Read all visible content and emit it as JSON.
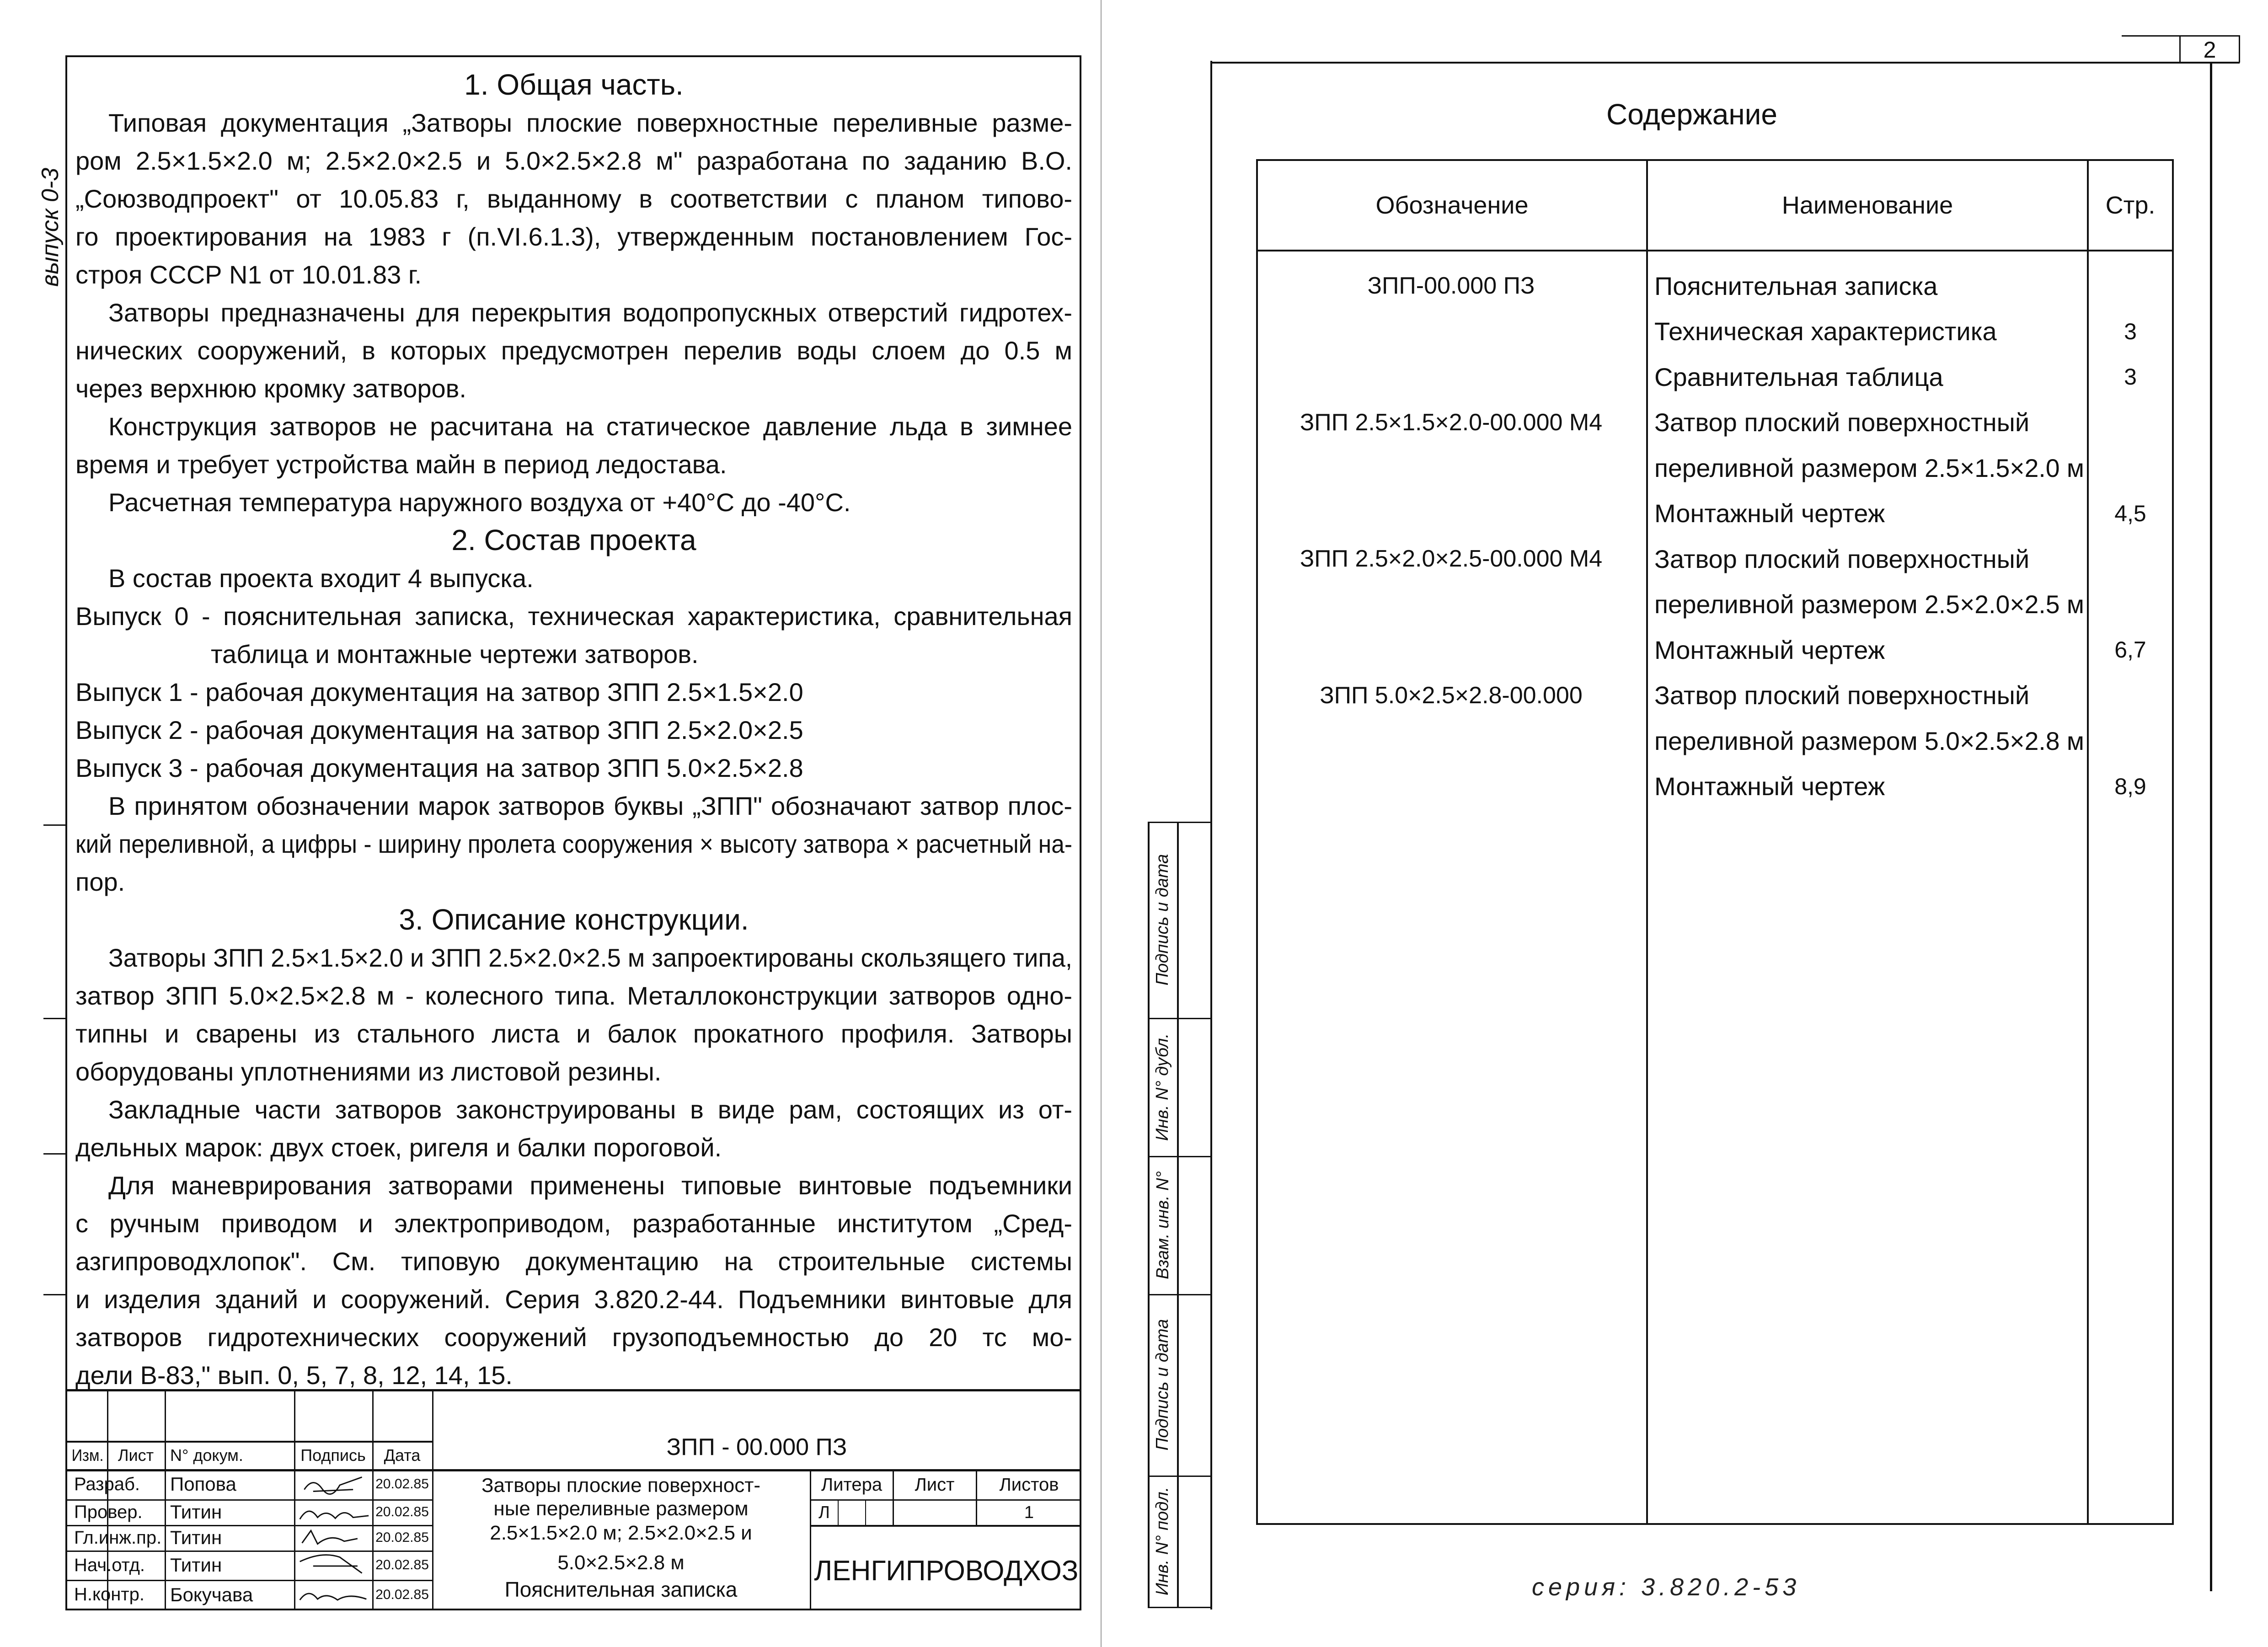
{
  "margin_stamp": "выпуск 0-3",
  "sheet_number": "2",
  "series": "серия: 3.820.2-53",
  "note": {
    "sections": [
      {
        "heading": "1. Общая часть.",
        "paragraphs": [
          {
            "kind": "text",
            "lines": [
              "Типовая документация „Затворы плоские поверхностные переливные разме-",
              "ром 2.5×1.5×2.0 м; 2.5×2.0×2.5 и 5.0×2.5×2.8 м\" разработана по заданию В.О.",
              "„Союзводпроект\" от 10.05.83 г, выданному в соответствии с планом типово-",
              "го проектирования на 1983 г (п.VI.6.1.3), утвержденным постановлением Гос-",
              "строя СССР N1 от 10.01.83 г."
            ]
          },
          {
            "kind": "text",
            "lines": [
              "Затворы предназначены для перекрытия водопропускных отверстий гидротех-",
              "нических сооружений, в которых предусмотрен перелив воды слоем до 0.5 м",
              "через верхнюю кромку затворов."
            ]
          },
          {
            "kind": "text",
            "lines": [
              "Конструкция затворов не расчитана на статическое давление льда в зимнее",
              "время и требует устройства майн в период ледостава."
            ]
          },
          {
            "kind": "text",
            "lines": [
              "Расчетная температура наружного воздуха от +40°С до -40°С."
            ]
          }
        ]
      },
      {
        "heading": "2. Состав проекта",
        "paragraphs": [
          {
            "kind": "text",
            "lines": [
              "В состав проекта входит 4 выпуска."
            ]
          },
          {
            "kind": "list",
            "lines": [
              "Выпуск 0 - пояснительная записка, техническая характеристика, сравнительная",
              "таблица и монтажные чертежи затворов."
            ]
          },
          {
            "kind": "list",
            "lines": [
              "Выпуск 1 - рабочая документация на затвор ЗПП 2.5×1.5×2.0"
            ]
          },
          {
            "kind": "list",
            "lines": [
              "Выпуск 2 - рабочая документация на затвор ЗПП 2.5×2.0×2.5"
            ]
          },
          {
            "kind": "list",
            "lines": [
              "Выпуск 3 - рабочая документация на затвор ЗПП 5.0×2.5×2.8"
            ]
          },
          {
            "kind": "text",
            "lines": [
              "В принятом обозначении марок затворов буквы „ЗПП\" обозначают затвор плос-",
              "кий переливной, а цифры - ширину пролета сооружения × высоту затвора × расчетный на-",
              "пор."
            ]
          }
        ]
      },
      {
        "heading": "3. Описание конструкции.",
        "paragraphs": [
          {
            "kind": "text",
            "lines": [
              "Затворы ЗПП 2.5×1.5×2.0 и ЗПП 2.5×2.0×2.5 м запроектированы скользящего типа,",
              "затвор ЗПП 5.0×2.5×2.8 м - колесного типа. Металлоконструкции затворов одно-",
              "типны и сварены из стального листа и балок прокатного профиля. Затворы",
              "оборудованы уплотнениями из листовой резины."
            ]
          },
          {
            "kind": "text",
            "lines": [
              "Закладные части затворов законструированы в виде рам, состоящих из от-",
              "дельных марок: двух стоек, ригеля и балки пороговой."
            ]
          },
          {
            "kind": "text",
            "lines": [
              "Для маневрирования затворами применены типовые винтовые подъемники",
              "с ручным приводом и электроприводом, разработанные институтом „Сред-",
              "азгипроводхлопок\". См. типовую документацию на строительные системы",
              "и изделия зданий и сооружений. Серия 3.820.2-44. Подъемники винтовые для",
              "затворов гидротехнических сооружений грузоподъемностью до 20 тс мо-",
              "дели В-83,\" вып. 0, 5, 7, 8, 12, 14, 15."
            ]
          }
        ]
      }
    ]
  },
  "title_block": {
    "header": {
      "change": "Изм.",
      "sheet": "Лист",
      "doc_no": "N° докум.",
      "signature": "Подпись",
      "date": "Дата"
    },
    "signers": [
      {
        "role": "Разраб.",
        "name": "Попова",
        "date": "20.02.85"
      },
      {
        "role": "Провер.",
        "name": "Титин",
        "date": "20.02.85"
      },
      {
        "role": "Гл.инж.пр.",
        "name": "Титин",
        "date": "20.02.85"
      },
      {
        "role": "Нач.отд.",
        "name": "Титин",
        "date": "20.02.85"
      },
      {
        "role": "Н.контр.",
        "name": "Бокучава",
        "date": "20.02.85"
      }
    ],
    "designation": "ЗПП - 00.000 ПЗ",
    "title_lines": [
      "Затворы плоские поверхност-",
      "ные переливные размером",
      "2.5×1.5×2.0 м;  2.5×2.0×2.5 и",
      "5.0×2.5×2.8 м"
    ],
    "doc_type": "Пояснительная записка",
    "stage_label": "Литера",
    "sheet_label": "Лист",
    "sheets_label": "Листов",
    "stage": "Л",
    "sheets": "1",
    "organization": "ЛЕНГИПРОВОДХОЗ"
  },
  "side_stamp": [
    "Инв. N° подл.",
    "Подпись и дата",
    "Взам. инв. N°",
    "Инв. N° дубл.",
    "Подпись и дата"
  ],
  "contents": {
    "title": "Содержание",
    "columns": [
      "Обозначение",
      "Наименование",
      "Стр."
    ],
    "rows": [
      {
        "designation": "ЗПП-00.000 ПЗ",
        "name": [
          "Пояснительная записка"
        ],
        "page": ""
      },
      {
        "designation": "",
        "name": [
          "Техническая характеристика"
        ],
        "page": "3"
      },
      {
        "designation": "",
        "name": [
          "Сравнительная таблица"
        ],
        "page": "3"
      },
      {
        "designation": "ЗПП 2.5×1.5×2.0-00.000 М4",
        "name": [
          "Затвор плоский поверхностный",
          "переливной размером 2.5×1.5×2.0 м"
        ],
        "page": ""
      },
      {
        "designation": "",
        "name": [
          "Монтажный чертеж"
        ],
        "page": "4,5"
      },
      {
        "designation": "ЗПП 2.5×2.0×2.5-00.000 М4",
        "name": [
          "Затвор плоский поверхностный",
          "переливной размером 2.5×2.0×2.5 м"
        ],
        "page": ""
      },
      {
        "designation": "",
        "name": [
          "Монтажный чертеж"
        ],
        "page": "6,7"
      },
      {
        "designation": "ЗПП 5.0×2.5×2.8-00.000",
        "name": [
          "Затвор плоский поверхностный",
          "переливной размером 5.0×2.5×2.8 м"
        ],
        "page": ""
      },
      {
        "designation": "",
        "name": [
          "Монтажный чертеж"
        ],
        "page": "8,9"
      }
    ]
  }
}
